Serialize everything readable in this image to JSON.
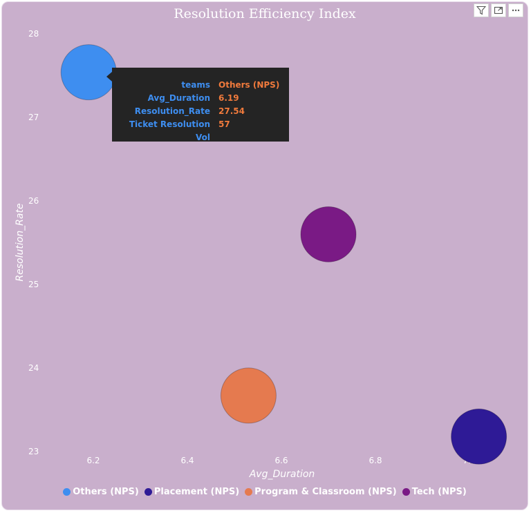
{
  "chart_data": {
    "type": "scatter",
    "title": "Resolution Efficiency Index",
    "xlabel": "Avg_Duration",
    "ylabel": "Resolution_Rate",
    "xlim": [
      6.1,
      7.1
    ],
    "ylim": [
      23,
      28
    ],
    "x_ticks": [
      "6.2",
      "6.4",
      "6.6",
      "6.8",
      "7.0"
    ],
    "y_ticks": [
      "23",
      "24",
      "25",
      "26",
      "27",
      "28"
    ],
    "grid": false,
    "legend_position": "bottom",
    "series": [
      {
        "name": "Others (NPS)",
        "color": "#3e8ef0",
        "x": 6.19,
        "y": 27.54,
        "size": 57
      },
      {
        "name": "Placement (NPS)",
        "color": "#2e1a96",
        "x": 7.02,
        "y": 23.18,
        "size": 57
      },
      {
        "name": "Program & Classroom (NPS)",
        "color": "#e57a4f",
        "x": 6.53,
        "y": 23.67,
        "size": 57
      },
      {
        "name": "Tech (NPS)",
        "color": "#7a1a85",
        "x": 6.7,
        "y": 25.6,
        "size": 57
      }
    ]
  },
  "tooltip": {
    "rows": [
      {
        "key": "teams",
        "value": "Others (NPS)"
      },
      {
        "key": "Avg_Duration",
        "value": "6.19"
      },
      {
        "key": "Resolution_Rate",
        "value": "27.54"
      },
      {
        "key": "Ticket Resolution Vol",
        "value": "57"
      }
    ]
  },
  "header_icons": [
    "filter-icon",
    "focus-mode-icon",
    "more-options-icon"
  ]
}
